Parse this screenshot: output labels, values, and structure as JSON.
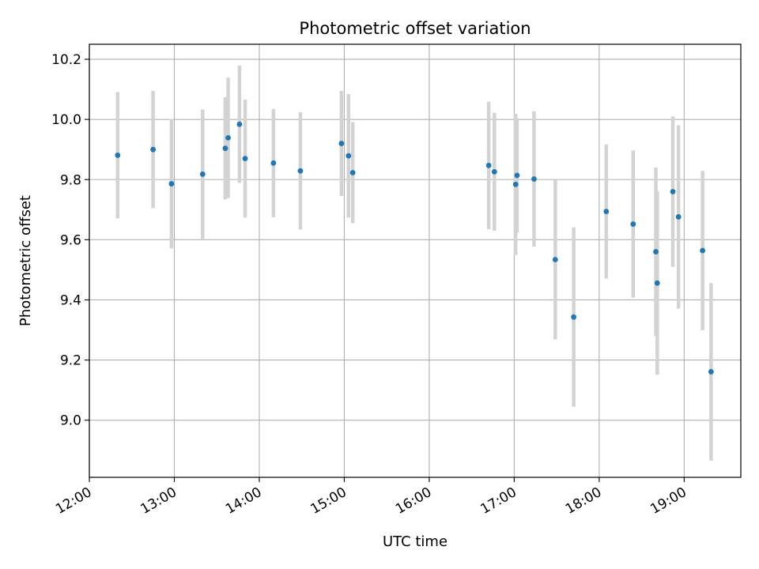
{
  "chart_data": {
    "type": "scatter",
    "title": "Photometric offset variation",
    "xlabel": "UTC time",
    "ylabel": "Photometric offset",
    "xlim": [
      "12:00",
      "19:40"
    ],
    "ylim": [
      8.81,
      10.25
    ],
    "x_ticks": [
      "12:00",
      "13:00",
      "14:00",
      "15:00",
      "16:00",
      "17:00",
      "18:00",
      "19:00"
    ],
    "y_ticks": [
      9.0,
      9.2,
      9.4,
      9.6,
      9.8,
      10.0,
      10.2
    ],
    "grid": true,
    "colors": {
      "marker": "#1f77b4",
      "errorbar": "#d3d3d3",
      "grid": "#b0b0b0"
    },
    "points": [
      {
        "x": "12:20",
        "y": 9.881,
        "err": 0.21
      },
      {
        "x": "12:45",
        "y": 9.9,
        "err": 0.195
      },
      {
        "x": "12:58",
        "y": 9.786,
        "err": 0.215
      },
      {
        "x": "13:20",
        "y": 9.818,
        "err": 0.215
      },
      {
        "x": "13:36",
        "y": 9.904,
        "err": 0.17
      },
      {
        "x": "13:38",
        "y": 9.939,
        "err": 0.2
      },
      {
        "x": "13:46",
        "y": 9.984,
        "err": 0.195
      },
      {
        "x": "13:50",
        "y": 9.87,
        "err": 0.196
      },
      {
        "x": "14:10",
        "y": 9.855,
        "err": 0.18
      },
      {
        "x": "14:29",
        "y": 9.829,
        "err": 0.195
      },
      {
        "x": "14:58",
        "y": 9.92,
        "err": 0.175
      },
      {
        "x": "15:03",
        "y": 9.879,
        "err": 0.205
      },
      {
        "x": "15:06",
        "y": 9.823,
        "err": 0.168
      },
      {
        "x": "16:42",
        "y": 9.847,
        "err": 0.212
      },
      {
        "x": "16:46",
        "y": 9.826,
        "err": 0.196
      },
      {
        "x": "17:01",
        "y": 9.784,
        "err": 0.235
      },
      {
        "x": "17:02",
        "y": 9.814,
        "err": 0.19
      },
      {
        "x": "17:14",
        "y": 9.802,
        "err": 0.225
      },
      {
        "x": "17:29",
        "y": 9.534,
        "err": 0.265
      },
      {
        "x": "17:42",
        "y": 9.343,
        "err": 0.298
      },
      {
        "x": "18:05",
        "y": 9.694,
        "err": 0.223
      },
      {
        "x": "18:24",
        "y": 9.652,
        "err": 0.245
      },
      {
        "x": "18:40",
        "y": 9.56,
        "err": 0.28
      },
      {
        "x": "18:41",
        "y": 9.456,
        "err": 0.305
      },
      {
        "x": "18:52",
        "y": 9.76,
        "err": 0.25
      },
      {
        "x": "18:56",
        "y": 9.676,
        "err": 0.305
      },
      {
        "x": "19:13",
        "y": 9.564,
        "err": 0.265
      },
      {
        "x": "19:19",
        "y": 9.161,
        "err": 0.295
      }
    ]
  }
}
